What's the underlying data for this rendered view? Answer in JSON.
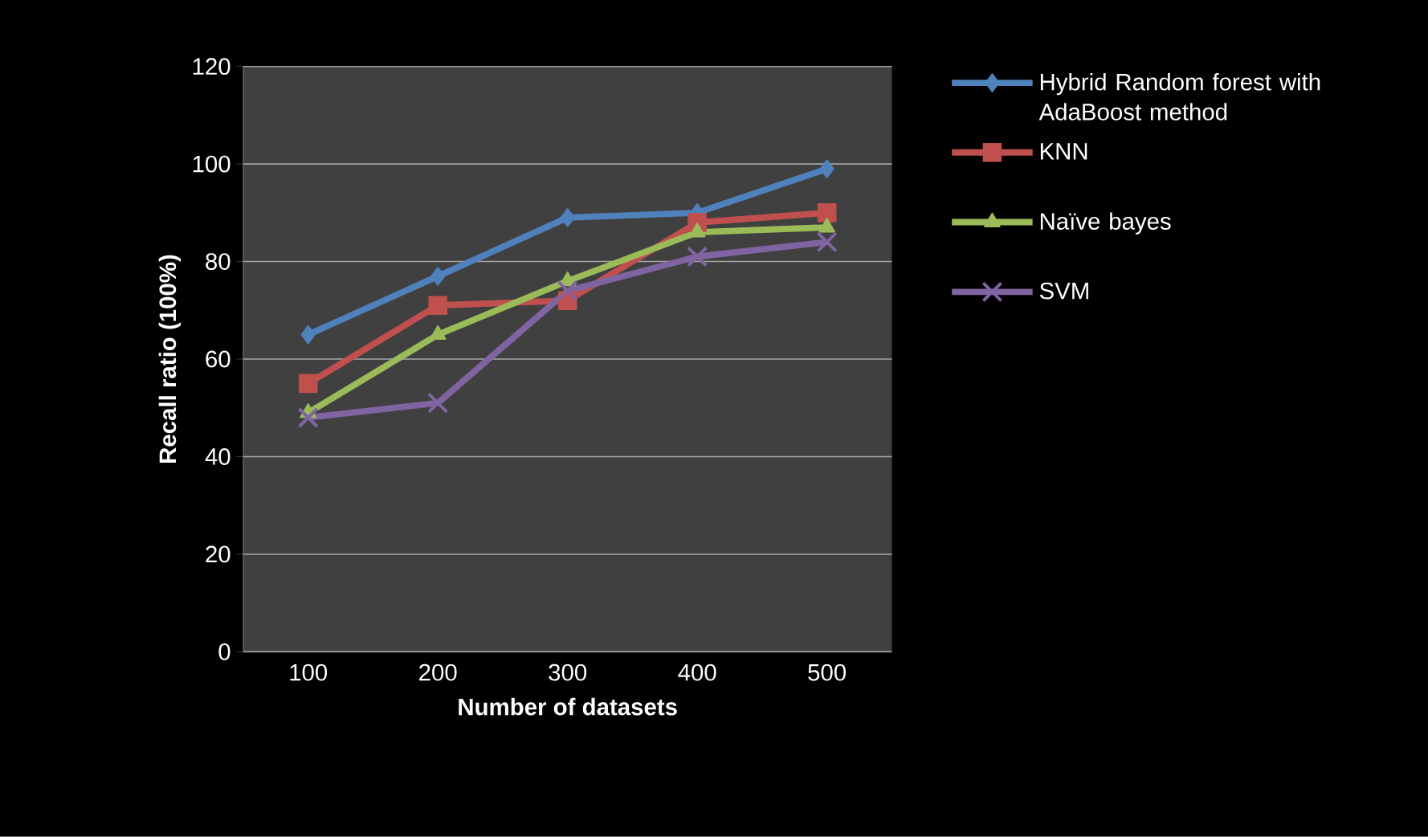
{
  "chart_data": {
    "type": "line",
    "xlabel": "Number of datasets",
    "ylabel": "Recall ratio (100%)",
    "categories": [
      "100",
      "200",
      "300",
      "400",
      "500"
    ],
    "series": [
      {
        "name": "Hybrid Random forest with AdaBoost method",
        "color": "#4f81bd",
        "marker": "diamond",
        "values": [
          65,
          77,
          89,
          90,
          99
        ]
      },
      {
        "name": "KNN",
        "color": "#c0504d",
        "marker": "square",
        "values": [
          55,
          71,
          72,
          88,
          90
        ]
      },
      {
        "name": "Naïve bayes",
        "color": "#9bbb59",
        "marker": "triangle",
        "values": [
          49,
          65,
          76,
          86,
          87
        ]
      },
      {
        "name": "SVM",
        "color": "#8064a2",
        "marker": "cross",
        "values": [
          48,
          51,
          74,
          81,
          84
        ]
      }
    ],
    "ylim": [
      0,
      120
    ],
    "yticks": [
      0,
      20,
      40,
      60,
      80,
      100,
      120
    ],
    "grid": "y",
    "legend": "right",
    "line_style": "solid"
  }
}
